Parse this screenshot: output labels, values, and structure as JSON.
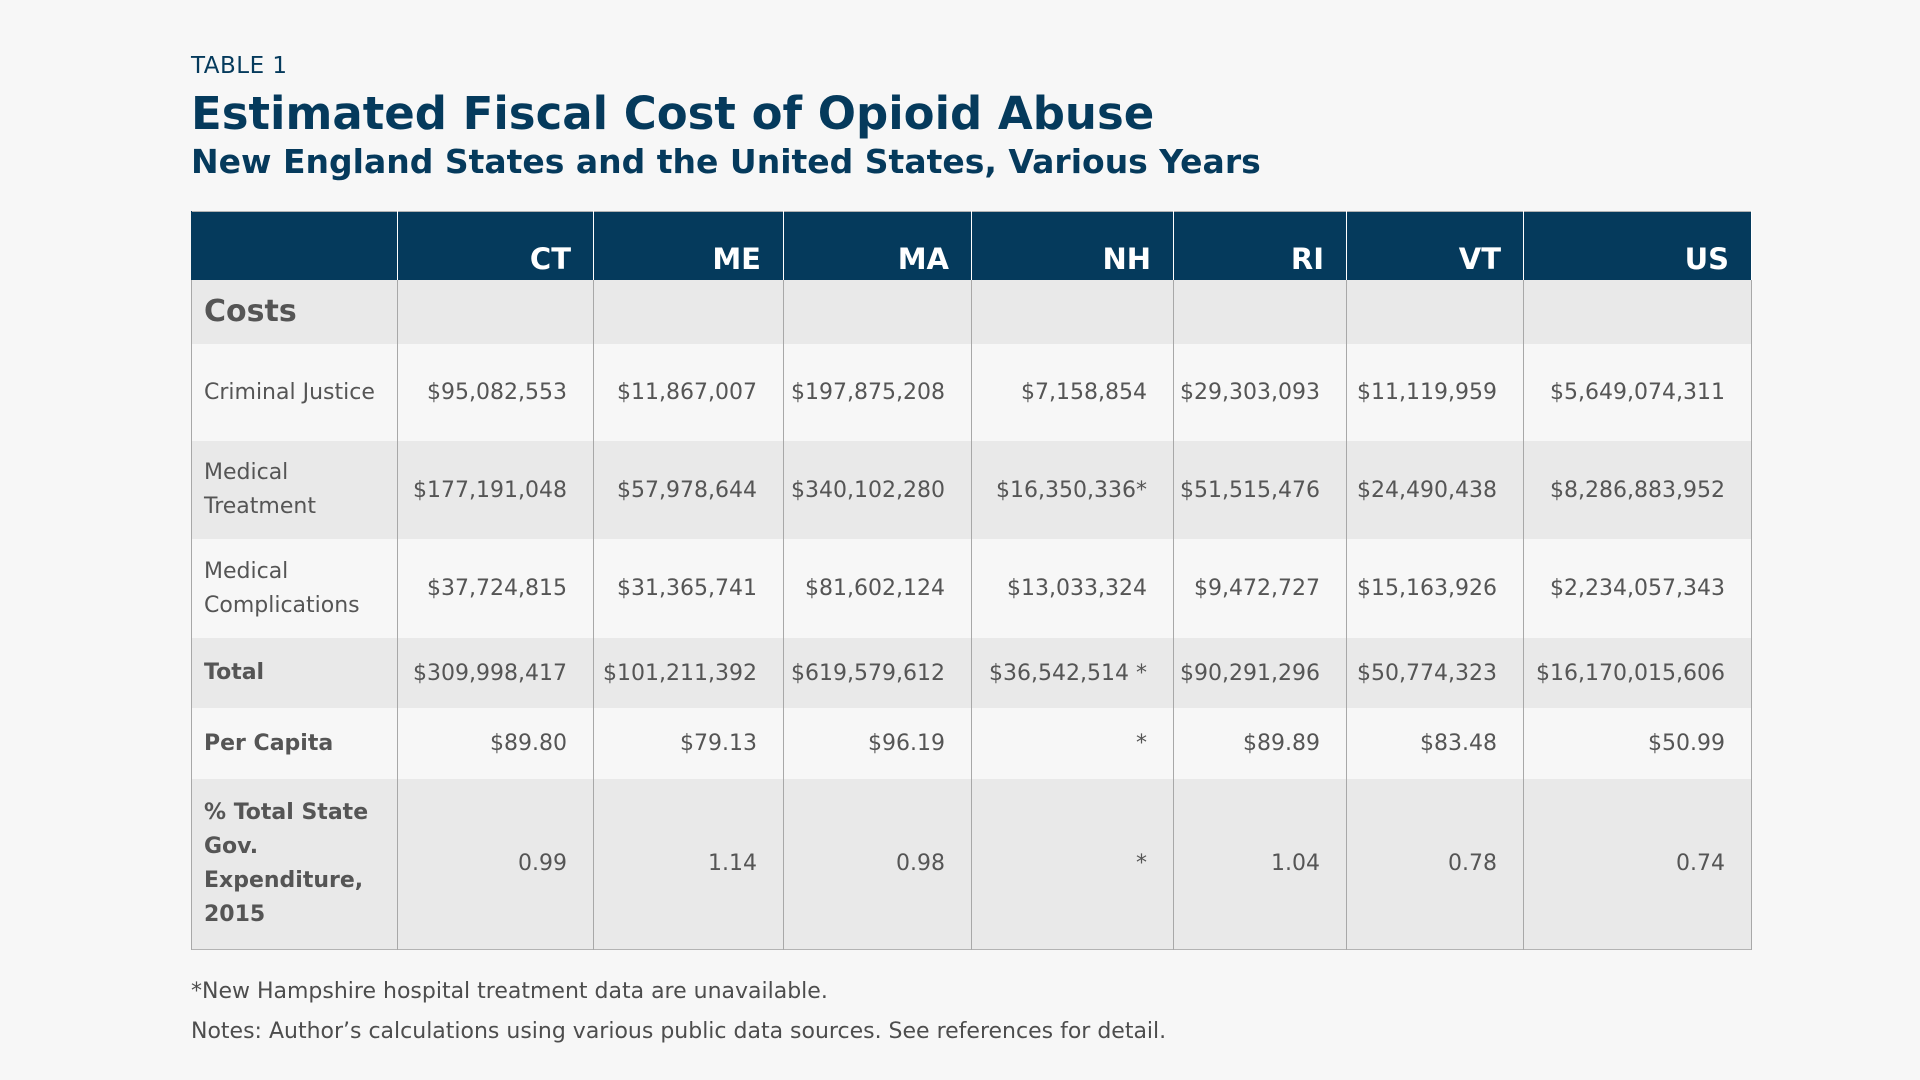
{
  "chart_data": {
    "type": "table",
    "label": "TABLE 1",
    "title": "Estimated Fiscal Cost of Opioid Abuse",
    "subtitle": "New England States and the United States, Various Years",
    "columns": [
      "",
      "CT",
      "ME",
      "MA",
      "NH",
      "RI",
      "VT",
      "US"
    ],
    "section": "Costs",
    "rows": [
      {
        "label": "Criminal Justice",
        "bold": false,
        "values": [
          "$95,082,553",
          "$11,867,007",
          "$197,875,208",
          "$7,158,854",
          "$29,303,093",
          "$11,119,959",
          "$5,649,074,311"
        ]
      },
      {
        "label": "Medical Treatment",
        "bold": false,
        "values": [
          "$177,191,048",
          "$57,978,644",
          "$340,102,280",
          "$16,350,336*",
          "$51,515,476",
          "$24,490,438",
          "$8,286,883,952"
        ]
      },
      {
        "label": "Medical Complications",
        "bold": false,
        "values": [
          "$37,724,815",
          "$31,365,741",
          "$81,602,124",
          "$13,033,324",
          "$9,472,727",
          "$15,163,926",
          "$2,234,057,343"
        ]
      },
      {
        "label": "Total",
        "bold": true,
        "values": [
          "$309,998,417",
          "$101,211,392",
          "$619,579,612",
          "$36,542,514 *",
          "$90,291,296",
          "$50,774,323",
          "$16,170,015,606"
        ]
      },
      {
        "label": "Per Capita",
        "bold": true,
        "values": [
          "$89.80",
          "$79.13",
          "$96.19",
          "*",
          "$89.89",
          "$83.48",
          "$50.99"
        ]
      },
      {
        "label": "% Total State Gov. Expenditure, 2015",
        "bold": true,
        "values": [
          "0.99",
          "1.14",
          "0.98",
          "*",
          "1.04",
          "0.78",
          "0.74"
        ]
      }
    ],
    "footnotes": [
      "*New Hampshire hospital treatment data are unavailable.",
      "Notes: Author’s calculations using various public data sources. See references for detail."
    ]
  }
}
